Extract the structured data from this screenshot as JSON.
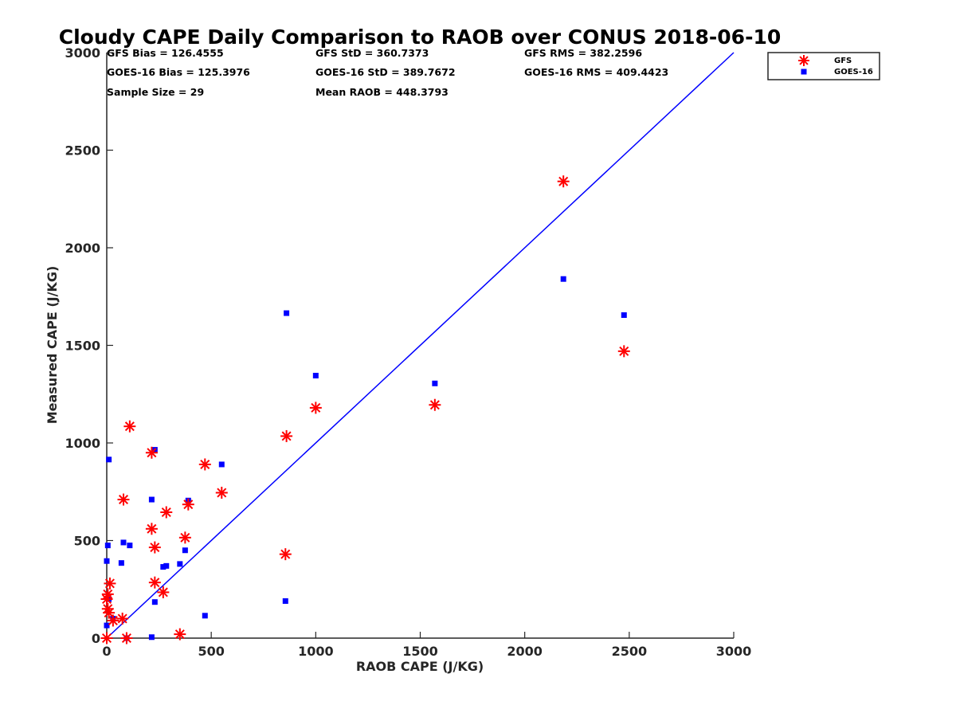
{
  "colors": {
    "gfs": "#ff0000",
    "goes16": "#0000ff",
    "line": "#0000ff",
    "axis": "#262626"
  },
  "stats": {
    "gfs_bias": "GFS Bias = 126.4555",
    "gfs_std": "GFS StD = 360.7373",
    "gfs_rms": "GFS RMS = 382.2596",
    "goes_bias": "GOES-16 Bias = 125.3976",
    "goes_std": "GOES-16 StD = 389.7672",
    "goes_rms": "GOES-16 RMS = 409.4423",
    "sample_size": "Sample Size = 29",
    "mean_raob": "Mean RAOB = 448.3793"
  },
  "chart_data": {
    "type": "scatter",
    "title": "Cloudy CAPE Daily Comparison to RAOB over CONUS 2018-06-10",
    "xlabel": "RAOB CAPE (J/KG)",
    "ylabel": "Measured CAPE (J/KG)",
    "xlim": [
      0,
      3000
    ],
    "ylim": [
      0,
      3000
    ],
    "xticks": [
      "0",
      "500",
      "1000",
      "1500",
      "2000",
      "2500",
      "3000"
    ],
    "yticks": [
      "0",
      "500",
      "1000",
      "1500",
      "2000",
      "2500",
      "3000"
    ],
    "grid": false,
    "legend_position": "outside-top-right",
    "reference_line": {
      "x": [
        0,
        3000
      ],
      "y": [
        0,
        3000
      ]
    },
    "series": [
      {
        "name": "GFS",
        "marker": "asterisk",
        "points": [
          [
            0,
            0
          ],
          [
            0,
            200
          ],
          [
            5,
            225
          ],
          [
            5,
            150
          ],
          [
            10,
            130
          ],
          [
            15,
            280
          ],
          [
            30,
            90
          ],
          [
            75,
            100
          ],
          [
            80,
            710
          ],
          [
            95,
            0
          ],
          [
            110,
            1085
          ],
          [
            215,
            950
          ],
          [
            215,
            560
          ],
          [
            230,
            465
          ],
          [
            230,
            285
          ],
          [
            270,
            235
          ],
          [
            285,
            645
          ],
          [
            350,
            20
          ],
          [
            375,
            515
          ],
          [
            390,
            685
          ],
          [
            470,
            890
          ],
          [
            550,
            745
          ],
          [
            855,
            430
          ],
          [
            860,
            1035
          ],
          [
            1000,
            1180
          ],
          [
            1570,
            1195
          ],
          [
            2185,
            2340
          ],
          [
            2475,
            1470
          ]
        ]
      },
      {
        "name": "GOES-16",
        "marker": "square",
        "points": [
          [
            0,
            65
          ],
          [
            0,
            395
          ],
          [
            5,
            475
          ],
          [
            10,
            915
          ],
          [
            10,
            200
          ],
          [
            30,
            100
          ],
          [
            70,
            385
          ],
          [
            80,
            490
          ],
          [
            95,
            0
          ],
          [
            110,
            475
          ],
          [
            215,
            710
          ],
          [
            215,
            5
          ],
          [
            230,
            965
          ],
          [
            230,
            185
          ],
          [
            270,
            365
          ],
          [
            285,
            370
          ],
          [
            350,
            380
          ],
          [
            375,
            450
          ],
          [
            390,
            705
          ],
          [
            470,
            115
          ],
          [
            550,
            890
          ],
          [
            855,
            190
          ],
          [
            860,
            1665
          ],
          [
            1000,
            1345
          ],
          [
            1570,
            1305
          ],
          [
            2185,
            1840
          ],
          [
            2475,
            1655
          ]
        ]
      }
    ]
  }
}
